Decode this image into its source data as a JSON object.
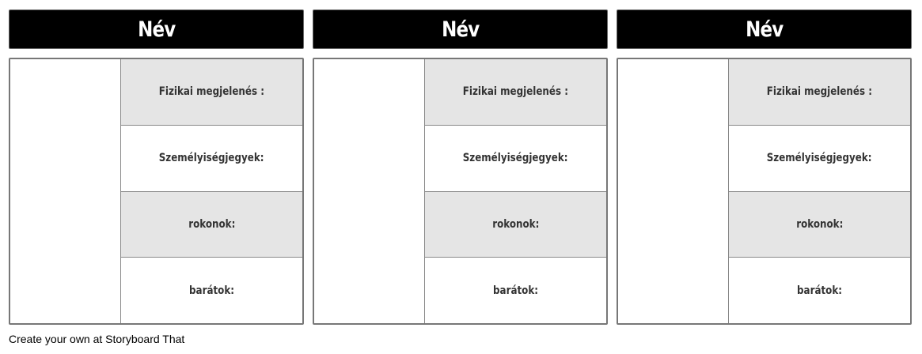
{
  "columns": [
    {
      "title": "Név",
      "rows": [
        "Fizikai megjelenés :",
        "Személyiségjegyek:",
        "rokonok:",
        "barátok:"
      ]
    },
    {
      "title": "Név",
      "rows": [
        "Fizikai megjelenés :",
        "Személyiségjegyek:",
        "rokonok:",
        "barátok:"
      ]
    },
    {
      "title": "Név",
      "rows": [
        "Fizikai megjelenés :",
        "Személyiségjegyek:",
        "rokonok:",
        "barátok:"
      ]
    }
  ],
  "colors": {
    "header": "#000000",
    "shaded_row": "#e5e5e5"
  },
  "footer": "Create your own at Storyboard That"
}
